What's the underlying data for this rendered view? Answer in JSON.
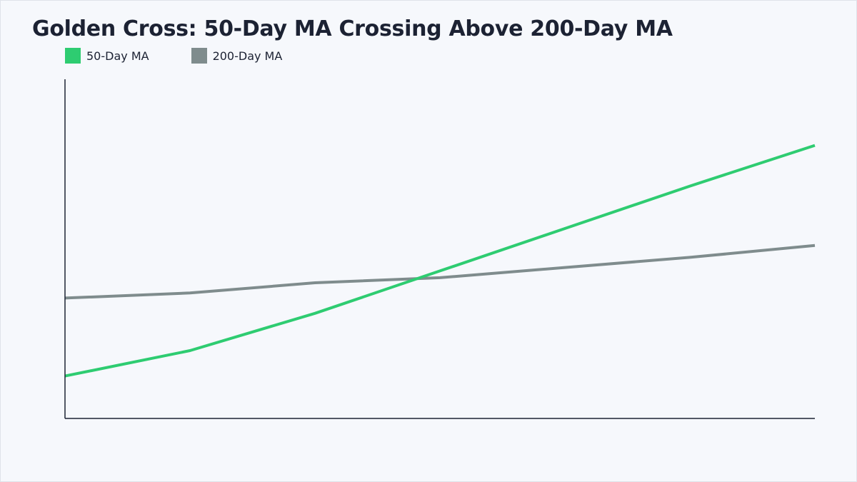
{
  "chart_data": {
    "type": "line",
    "title": "Golden Cross: 50-Day MA Crossing Above 200-Day MA",
    "xlabel": "",
    "ylabel": "",
    "x": [
      0,
      1,
      2,
      3,
      4,
      5,
      6
    ],
    "xlim": [
      0,
      6
    ],
    "ylim": [
      0,
      100
    ],
    "grid": false,
    "legend_position": "top-left",
    "series": [
      {
        "name": "50-Day MA",
        "color": "#2ecc71",
        "values": [
          12.5,
          20,
          31,
          43.5,
          56,
          68.5,
          80.5
        ]
      },
      {
        "name": "200-Day MA",
        "color": "#7f8c8d",
        "values": [
          35.5,
          37,
          40,
          41.5,
          44.5,
          47.5,
          51
        ]
      }
    ]
  }
}
